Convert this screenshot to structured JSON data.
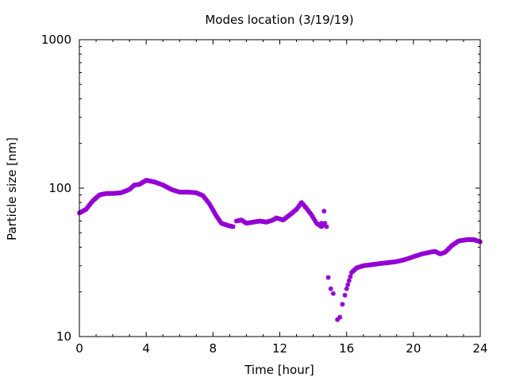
{
  "chart_data": {
    "type": "scatter",
    "title": "Modes location (3/19/19)",
    "xlabel": "Time [hour]",
    "ylabel": "Particle size [nm]",
    "xlim": [
      0,
      24
    ],
    "ylim": [
      10,
      1000
    ],
    "yscale": "log",
    "grid": false,
    "legend": "none",
    "marker_color": "#9400D3",
    "xticks": [
      0,
      4,
      8,
      12,
      16,
      20,
      24
    ],
    "xtick_labels": [
      "0",
      "4",
      "8",
      "12",
      "16",
      "20",
      "24"
    ],
    "yticks": [
      10,
      100,
      1000
    ],
    "ytick_labels": [
      "10",
      "100",
      "1000"
    ],
    "anchors": [
      [
        0.0,
        68
      ],
      [
        0.4,
        72
      ],
      [
        0.8,
        82
      ],
      [
        1.2,
        90
      ],
      [
        1.6,
        92
      ],
      [
        2.0,
        92
      ],
      [
        2.5,
        93
      ],
      [
        3.0,
        98
      ],
      [
        3.3,
        105
      ],
      [
        3.6,
        106
      ],
      [
        4.0,
        113
      ],
      [
        4.5,
        110
      ],
      [
        5.0,
        105
      ],
      [
        5.5,
        98
      ],
      [
        6.0,
        94
      ],
      [
        6.5,
        94
      ],
      [
        7.0,
        93
      ],
      [
        7.4,
        89
      ],
      [
        7.8,
        78
      ],
      [
        8.2,
        65
      ],
      [
        8.5,
        58
      ],
      [
        8.9,
        56
      ],
      [
        9.2,
        55
      ]
    ],
    "segments": [
      [
        [
          9.4,
          60
        ],
        [
          9.7,
          61
        ],
        [
          10.0,
          58
        ],
        [
          10.4,
          59
        ],
        [
          10.8,
          60
        ],
        [
          11.2,
          59
        ],
        [
          11.6,
          61
        ],
        [
          11.8,
          63
        ],
        [
          12.2,
          61
        ],
        [
          12.6,
          66
        ],
        [
          13.0,
          72
        ],
        [
          13.3,
          80
        ],
        [
          13.6,
          73
        ],
        [
          13.9,
          66
        ],
        [
          14.2,
          58
        ],
        [
          14.5,
          55
        ],
        [
          14.7,
          58
        ]
      ],
      [
        [
          16.0,
          21
        ],
        [
          16.3,
          27
        ],
        [
          16.6,
          29
        ],
        [
          17.0,
          30
        ],
        [
          17.5,
          30.5
        ],
        [
          18.0,
          31
        ],
        [
          18.5,
          31.5
        ],
        [
          19.0,
          32
        ],
        [
          19.5,
          33
        ],
        [
          20.0,
          34.5
        ],
        [
          20.5,
          36
        ],
        [
          21.0,
          37
        ],
        [
          21.3,
          37.5
        ],
        [
          21.6,
          36
        ],
        [
          21.9,
          37
        ],
        [
          22.3,
          41
        ],
        [
          22.7,
          44
        ],
        [
          23.2,
          45
        ],
        [
          23.6,
          45
        ],
        [
          24.0,
          43.5
        ]
      ]
    ],
    "scattered_points": [
      [
        14.5,
        58
      ],
      [
        14.65,
        70
      ],
      [
        14.8,
        55
      ],
      [
        14.9,
        25
      ],
      [
        15.05,
        21
      ],
      [
        15.2,
        19.5
      ],
      [
        15.45,
        13
      ],
      [
        15.6,
        13.5
      ],
      [
        15.75,
        16.5
      ],
      [
        15.9,
        19
      ]
    ]
  }
}
